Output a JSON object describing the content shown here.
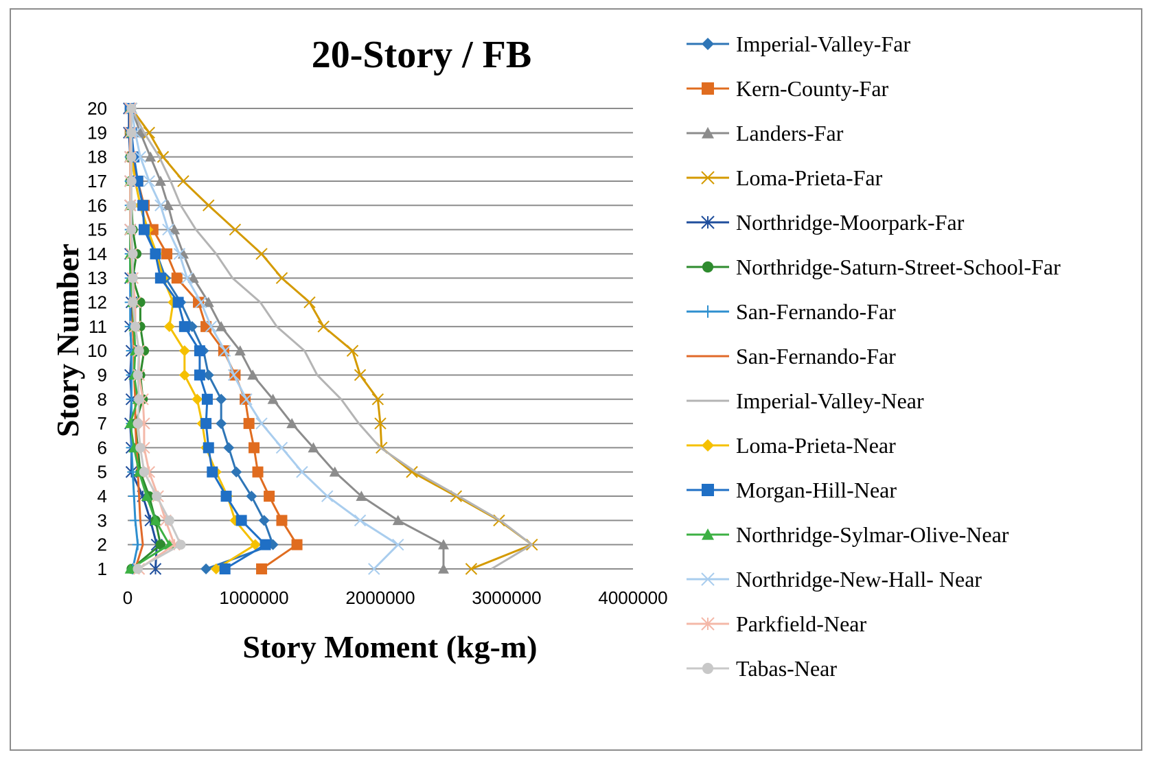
{
  "chart_data": {
    "type": "line",
    "title": "20-Story / FB",
    "xlabel": "Story Moment (kg-m)",
    "ylabel": "Story Number",
    "xlim": [
      0,
      4000000
    ],
    "xticks": [
      "0",
      "1000000",
      "2000000",
      "3000000",
      "4000000"
    ],
    "ylim": [
      1,
      20
    ],
    "yticks": [
      "1",
      "2",
      "3",
      "4",
      "5",
      "6",
      "7",
      "8",
      "9",
      "10",
      "11",
      "12",
      "13",
      "14",
      "15",
      "16",
      "17",
      "18",
      "19",
      "20"
    ],
    "y": [
      1,
      2,
      3,
      4,
      5,
      6,
      7,
      8,
      9,
      10,
      11,
      12,
      13,
      14,
      15,
      16,
      17,
      18,
      19,
      20
    ],
    "grid": true,
    "legend_position": "right",
    "series": [
      {
        "name": "Imperial-Valley-Far",
        "color": "#2e75b6",
        "marker": "diamond",
        "values": [
          620000,
          1150000,
          1080000,
          980000,
          860000,
          800000,
          740000,
          740000,
          640000,
          600000,
          510000,
          420000,
          300000,
          230000,
          150000,
          100000,
          60000,
          30000,
          20000,
          20000
        ]
      },
      {
        "name": "Kern-County-Far",
        "color": "#e06c1f",
        "marker": "square",
        "values": [
          1060000,
          1340000,
          1220000,
          1120000,
          1030000,
          1000000,
          960000,
          930000,
          850000,
          760000,
          620000,
          560000,
          390000,
          310000,
          200000,
          130000,
          80000,
          40000,
          20000,
          20000
        ]
      },
      {
        "name": "Landers-Far",
        "color": "#8c8c8c",
        "marker": "triangle",
        "values": [
          2500000,
          2500000,
          2140000,
          1850000,
          1640000,
          1470000,
          1300000,
          1150000,
          990000,
          890000,
          740000,
          640000,
          520000,
          440000,
          370000,
          320000,
          260000,
          180000,
          100000,
          30000
        ]
      },
      {
        "name": "Loma-Prieta-Far",
        "color": "#d49a00",
        "marker": "x",
        "values": [
          2720000,
          3200000,
          2940000,
          2600000,
          2250000,
          2010000,
          2000000,
          1980000,
          1840000,
          1780000,
          1550000,
          1440000,
          1220000,
          1060000,
          850000,
          640000,
          440000,
          280000,
          170000,
          30000
        ]
      },
      {
        "name": "Northridge-Moorpark-Far",
        "color": "#1f4e9c",
        "marker": "star",
        "values": [
          220000,
          230000,
          180000,
          120000,
          30000,
          30000,
          20000,
          30000,
          20000,
          30000,
          20000,
          30000,
          20000,
          20000,
          20000,
          20000,
          20000,
          20000,
          10000,
          10000
        ]
      },
      {
        "name": "Northridge-Saturn-Street-School-Far",
        "color": "#2e8b2e",
        "marker": "circle",
        "values": [
          30000,
          260000,
          220000,
          170000,
          100000,
          80000,
          60000,
          120000,
          100000,
          130000,
          100000,
          100000,
          40000,
          70000,
          40000,
          30000,
          20000,
          20000,
          20000,
          20000
        ]
      },
      {
        "name": "San-Fernando-Far",
        "color": "#2e8fcf",
        "marker": "plus",
        "values": [
          40000,
          80000,
          60000,
          50000,
          40000,
          30000,
          30000,
          30000,
          30000,
          30000,
          20000,
          20000,
          20000,
          20000,
          20000,
          20000,
          20000,
          20000,
          20000,
          20000
        ]
      },
      {
        "name": "San-Fernando-Far",
        "color": "#e0692a",
        "marker": "none",
        "values": [
          60000,
          120000,
          100000,
          90000,
          80000,
          70000,
          60000,
          60000,
          50000,
          50000,
          40000,
          40000,
          30000,
          30000,
          30000,
          20000,
          20000,
          20000,
          20000,
          20000
        ]
      },
      {
        "name": "Imperial-Valley-Near",
        "color": "#b4b4b4",
        "marker": "none",
        "values": [
          2880000,
          3200000,
          2950000,
          2620000,
          2280000,
          2000000,
          1830000,
          1690000,
          1500000,
          1400000,
          1180000,
          1050000,
          830000,
          700000,
          540000,
          420000,
          340000,
          250000,
          130000,
          30000
        ]
      },
      {
        "name": "Loma-Prieta-Near",
        "color": "#f5c000",
        "marker": "diamond",
        "values": [
          700000,
          1010000,
          850000,
          790000,
          700000,
          620000,
          590000,
          550000,
          450000,
          450000,
          330000,
          360000,
          280000,
          230000,
          160000,
          100000,
          60000,
          30000,
          20000,
          20000
        ]
      },
      {
        "name": "Morgan-Hill-Near",
        "color": "#1f6fc5",
        "marker": "square",
        "values": [
          770000,
          1090000,
          900000,
          780000,
          670000,
          640000,
          620000,
          630000,
          570000,
          570000,
          450000,
          400000,
          260000,
          220000,
          130000,
          120000,
          80000,
          50000,
          30000,
          20000
        ]
      },
      {
        "name": "Northridge-Sylmar-Olive-Near",
        "color": "#3cb043",
        "marker": "triangle",
        "values": [
          20000,
          330000,
          220000,
          150000,
          90000,
          50000,
          20000,
          80000,
          50000,
          60000,
          50000,
          40000,
          20000,
          20000,
          20000,
          20000,
          20000,
          20000,
          20000,
          20000
        ]
      },
      {
        "name": "Northridge-New-Hall- Near",
        "color": "#a9cdee",
        "marker": "x",
        "values": [
          1950000,
          2140000,
          1840000,
          1580000,
          1380000,
          1220000,
          1060000,
          940000,
          840000,
          770000,
          660000,
          580000,
          470000,
          410000,
          320000,
          260000,
          170000,
          100000,
          60000,
          30000
        ]
      },
      {
        "name": "Parkfield-Near",
        "color": "#f4b8a8",
        "marker": "star",
        "values": [
          90000,
          370000,
          300000,
          240000,
          170000,
          130000,
          130000,
          120000,
          90000,
          90000,
          60000,
          60000,
          40000,
          30000,
          20000,
          20000,
          20000,
          20000,
          20000,
          20000
        ]
      },
      {
        "name": "Tabas-Near",
        "color": "#c8c8c8",
        "marker": "circle",
        "values": [
          80000,
          420000,
          330000,
          230000,
          130000,
          100000,
          80000,
          90000,
          80000,
          90000,
          60000,
          40000,
          40000,
          40000,
          30000,
          30000,
          30000,
          30000,
          30000,
          30000
        ]
      }
    ]
  }
}
